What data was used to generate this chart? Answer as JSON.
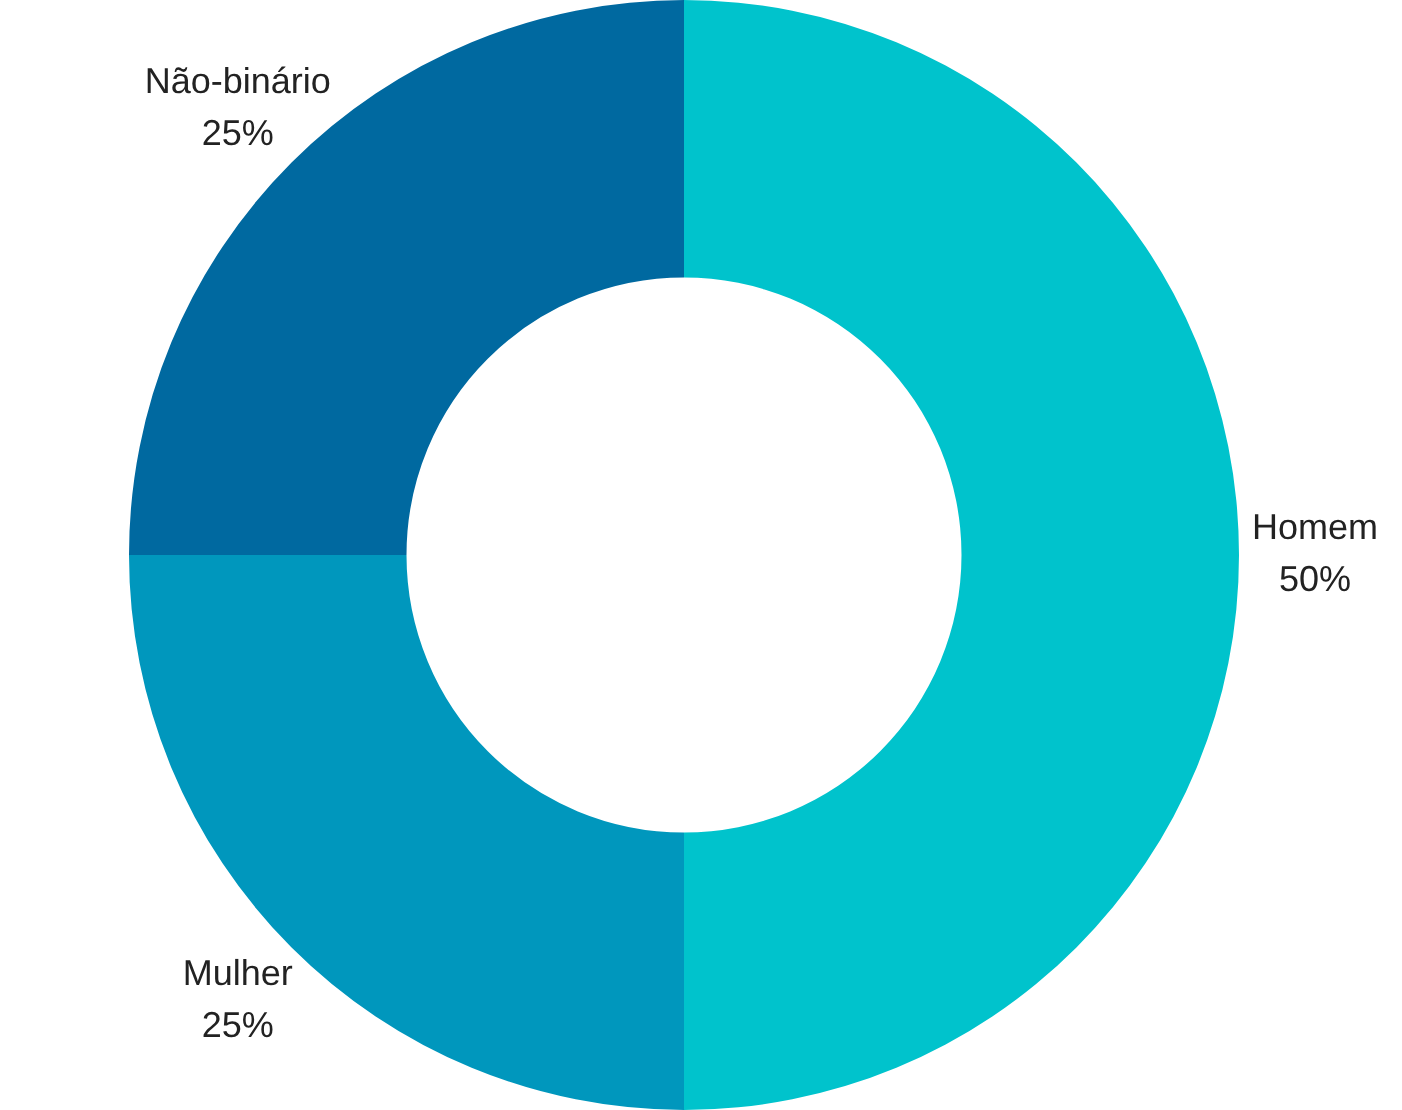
{
  "chart_data": {
    "type": "donut",
    "categories": [
      "Homem",
      "Mulher",
      "Não-binário"
    ],
    "values": [
      50,
      25,
      25
    ],
    "colors": [
      "#00c3cc",
      "#0097bd",
      "#0069a0"
    ],
    "value_labels": [
      "50%",
      "25%",
      "25%"
    ],
    "legend": false
  }
}
